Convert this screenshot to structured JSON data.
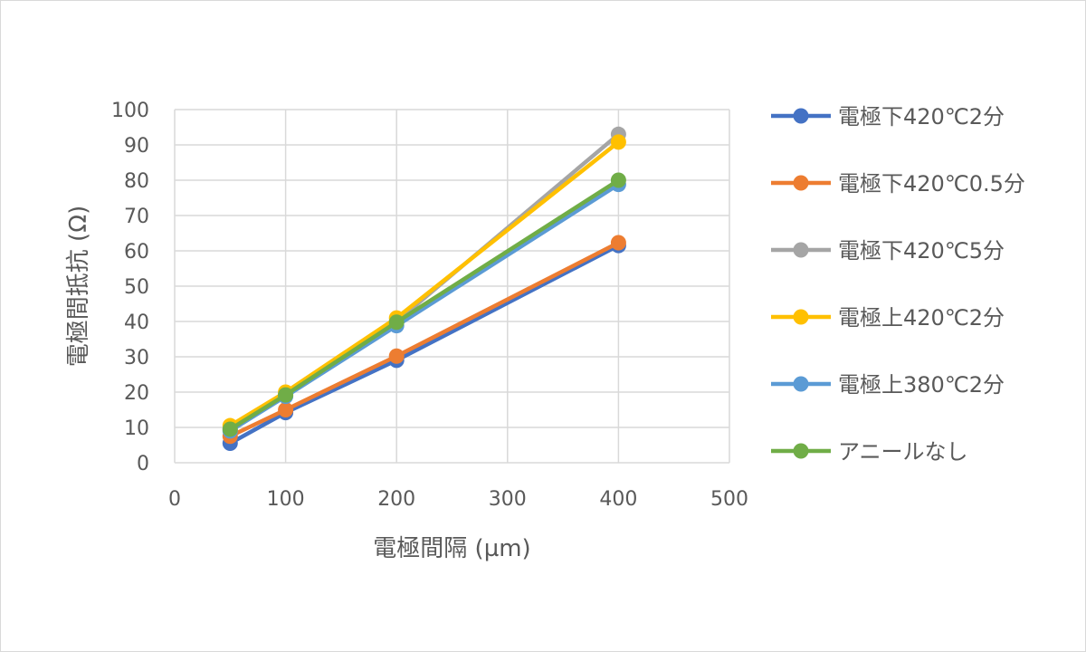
{
  "chart_data": {
    "type": "scatter",
    "title": "",
    "xlabel": "電極間隔 (µm)",
    "ylabel": "電極間抵抗 (Ω)",
    "xlim": [
      0,
      500
    ],
    "ylim": [
      0,
      100
    ],
    "x_ticks": [
      0,
      100,
      200,
      300,
      400,
      500
    ],
    "y_ticks": [
      0,
      10,
      20,
      30,
      40,
      50,
      60,
      70,
      80,
      90,
      100
    ],
    "grid": true,
    "legend_position": "right",
    "x": [
      50,
      100,
      200,
      400
    ],
    "series": [
      {
        "name": "電極下420℃2分",
        "color": "#4472C4",
        "values": [
          5.5,
          14.2,
          29.0,
          61.5
        ]
      },
      {
        "name": "電極下420℃0.5分",
        "color": "#ED7D31",
        "values": [
          7.5,
          15.0,
          30.2,
          62.3
        ]
      },
      {
        "name": "電極下420℃5分",
        "color": "#A5A5A5",
        "values": [
          9.5,
          19.5,
          40.0,
          93.0
        ]
      },
      {
        "name": "電極上420℃2分",
        "color": "#FFC000",
        "values": [
          10.5,
          20.0,
          41.0,
          90.8
        ]
      },
      {
        "name": "電極上380℃2分",
        "color": "#5B9BD5",
        "values": [
          9.0,
          18.8,
          38.8,
          78.8
        ]
      },
      {
        "name": "アニールなし",
        "color": "#70AD47",
        "values": [
          9.5,
          19.2,
          39.8,
          80.0
        ]
      }
    ]
  }
}
